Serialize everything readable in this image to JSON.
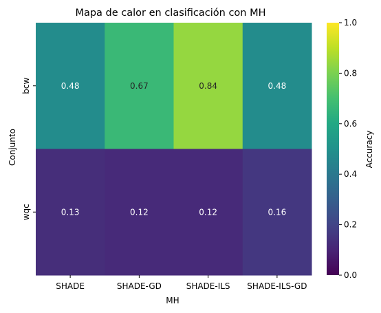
{
  "chart_data": {
    "type": "heatmap",
    "title": "Mapa de calor en clasificación con MH",
    "xlabel": "MH",
    "ylabel": "Conjunto",
    "x_categories": [
      "SHADE",
      "SHADE-GD",
      "SHADE-ILS",
      "SHADE-ILS-GD"
    ],
    "y_categories": [
      "bcw",
      "wqc"
    ],
    "values": [
      [
        0.48,
        0.67,
        0.84,
        0.48
      ],
      [
        0.13,
        0.12,
        0.12,
        0.16
      ]
    ],
    "value_labels": [
      [
        "0.48",
        "0.67",
        "0.84",
        "0.48"
      ],
      [
        "0.13",
        "0.12",
        "0.12",
        "0.16"
      ]
    ],
    "colormap": "viridis",
    "colorbar": {
      "label": "Accuracy",
      "range": [
        0.0,
        1.0
      ],
      "ticks": [
        "0.0",
        "0.2",
        "0.4",
        "0.6",
        "0.8",
        "1.0"
      ]
    }
  }
}
